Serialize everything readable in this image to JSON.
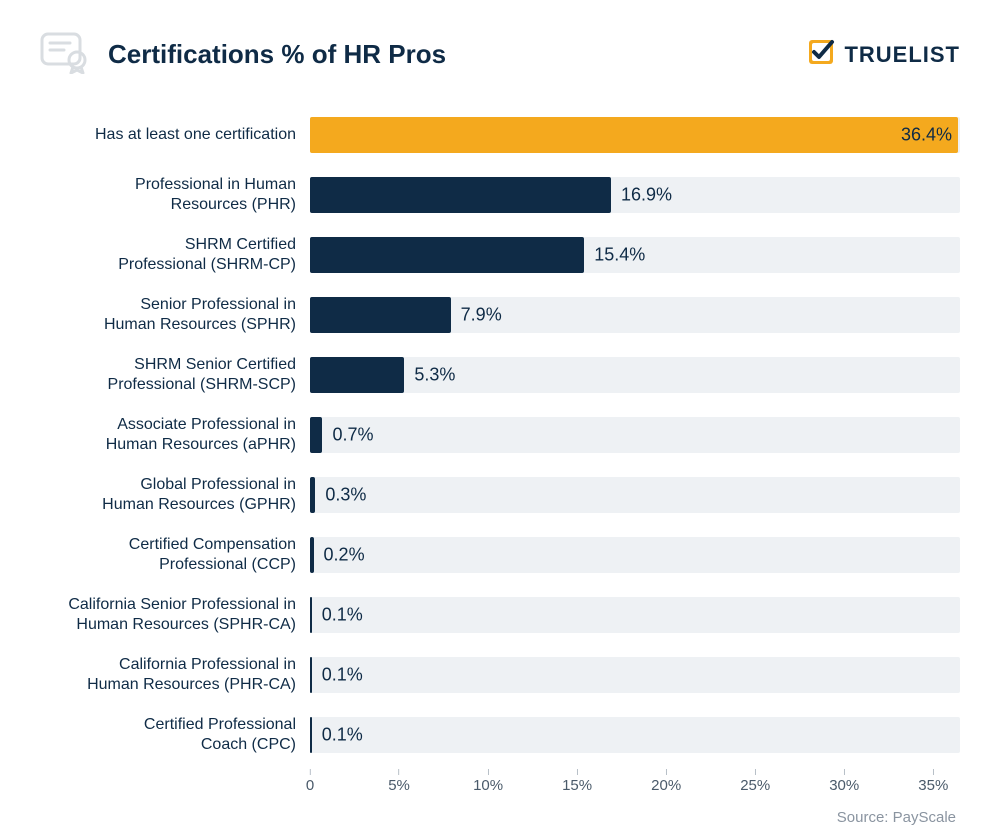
{
  "header": {
    "title": "Certifications % of HR Pros",
    "brand_text": "TRUELIST"
  },
  "chart": {
    "type": "bar",
    "orientation": "horizontal",
    "x_max": 36.5,
    "track_color": "#eef1f4",
    "highlight_color": "#f4a91e",
    "bar_color": "#0f2b46",
    "value_font_size": 18,
    "label_font_size": 16,
    "ticks": [
      {
        "v": 0,
        "label": "0"
      },
      {
        "v": 5,
        "label": "5%"
      },
      {
        "v": 10,
        "label": "10%"
      },
      {
        "v": 15,
        "label": "15%"
      },
      {
        "v": 20,
        "label": "20%"
      },
      {
        "v": 25,
        "label": "25%"
      },
      {
        "v": 30,
        "label": "30%"
      },
      {
        "v": 35,
        "label": "35%"
      }
    ],
    "items": [
      {
        "label": "Has at least one certification",
        "value": 36.4,
        "display": "36.4%",
        "highlight": true,
        "inside": true
      },
      {
        "label": "Professional in Human\nResources (PHR)",
        "value": 16.9,
        "display": "16.9%",
        "highlight": false,
        "inside": false
      },
      {
        "label": "SHRM Certified\nProfessional (SHRM-CP)",
        "value": 15.4,
        "display": "15.4%",
        "highlight": false,
        "inside": false
      },
      {
        "label": "Senior Professional in\nHuman Resources (SPHR)",
        "value": 7.9,
        "display": "7.9%",
        "highlight": false,
        "inside": false
      },
      {
        "label": "SHRM Senior Certified\nProfessional (SHRM-SCP)",
        "value": 5.3,
        "display": "5.3%",
        "highlight": false,
        "inside": false
      },
      {
        "label": "Associate Professional in\nHuman Resources (aPHR)",
        "value": 0.7,
        "display": "0.7%",
        "highlight": false,
        "inside": false
      },
      {
        "label": "Global Professional in\nHuman Resources (GPHR)",
        "value": 0.3,
        "display": "0.3%",
        "highlight": false,
        "inside": false
      },
      {
        "label": "Certified Compensation\nProfessional (CCP)",
        "value": 0.2,
        "display": "0.2%",
        "highlight": false,
        "inside": false
      },
      {
        "label": "California Senior Professional in\nHuman Resources (SPHR-CA)",
        "value": 0.1,
        "display": "0.1%",
        "highlight": false,
        "inside": false
      },
      {
        "label": "California Professional in\nHuman Resources (PHR-CA)",
        "value": 0.1,
        "display": "0.1%",
        "highlight": false,
        "inside": false
      },
      {
        "label": "Certified Professional\nCoach (CPC)",
        "value": 0.1,
        "display": "0.1%",
        "highlight": false,
        "inside": false
      }
    ]
  },
  "source": {
    "text": "Source: PayScale"
  }
}
